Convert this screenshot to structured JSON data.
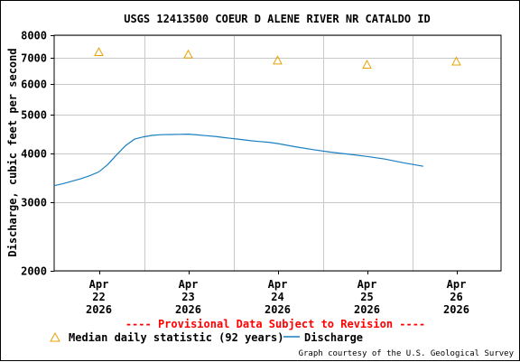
{
  "chart_data": {
    "type": "line",
    "title": "USGS 12413500 COEUR D ALENE RIVER NR CATALDO ID",
    "ylabel": "Discharge, cubic feet per second",
    "xlabel": "",
    "y_scale": "log",
    "ylim": [
      2000,
      8000
    ],
    "y_ticks": [
      2000,
      3000,
      4000,
      5000,
      6000,
      7000,
      8000
    ],
    "xlim": [
      21.5,
      26.5
    ],
    "x_ticks": [
      {
        "value": 22,
        "label": [
          "Apr",
          "22",
          "2026"
        ]
      },
      {
        "value": 23,
        "label": [
          "Apr",
          "23",
          "2026"
        ]
      },
      {
        "value": 24,
        "label": [
          "Apr",
          "24",
          "2026"
        ]
      },
      {
        "value": 25,
        "label": [
          "Apr",
          "25",
          "2026"
        ]
      },
      {
        "value": 26,
        "label": [
          "Apr",
          "26",
          "2026"
        ]
      }
    ],
    "grid": true,
    "series": [
      {
        "name": "Discharge",
        "color": "#1a7fc1",
        "x": [
          21.5,
          21.6,
          21.7,
          21.8,
          21.9,
          22.0,
          22.1,
          22.2,
          22.3,
          22.4,
          22.5,
          22.6,
          22.7,
          22.8,
          22.9,
          23.0,
          23.1,
          23.2,
          23.3,
          23.4,
          23.5,
          23.6,
          23.7,
          23.8,
          23.9,
          24.0,
          24.2,
          24.4,
          24.6,
          24.8,
          25.0,
          25.2,
          25.4,
          25.63
        ],
        "y": [
          3300,
          3340,
          3390,
          3440,
          3500,
          3580,
          3740,
          3960,
          4180,
          4340,
          4400,
          4440,
          4455,
          4460,
          4465,
          4470,
          4450,
          4430,
          4410,
          4380,
          4355,
          4330,
          4300,
          4280,
          4260,
          4230,
          4150,
          4080,
          4020,
          3970,
          3920,
          3860,
          3780,
          3700
        ]
      },
      {
        "name": "Median daily statistic (92 years)",
        "color": "#e8a000",
        "marker": "triangle",
        "x": [
          22,
          23,
          24,
          25,
          26
        ],
        "y": [
          7250,
          7150,
          6900,
          6730,
          6860
        ]
      }
    ]
  },
  "provisional_note": "---- Provisional Data Subject to Revision ----",
  "legend": {
    "median_label": "Median daily statistic (92 years)",
    "discharge_label": "Discharge"
  },
  "credit": "Graph courtesy of the U.S. Geological Survey"
}
